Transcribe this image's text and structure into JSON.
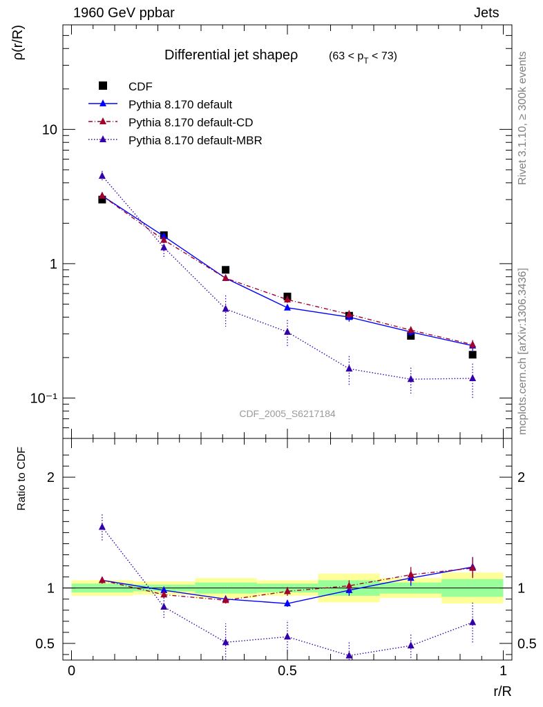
{
  "header": {
    "left": "1960 GeV ppbar",
    "right": "Jets"
  },
  "side_labels": {
    "rivet": "Rivet 3.1.10, ≥ 300k events",
    "mcplots": "mcplots.cern.ch [arXiv:1306.3436]"
  },
  "chart_data": [
    {
      "type": "line",
      "title": "Differential jet shapeρ",
      "subtitle": "(63 < p_T < 73)",
      "ylabel": "ρ(r/R)",
      "xlabel": "",
      "yscale": "log",
      "xlim": [
        -0.02,
        1.02
      ],
      "ylim": [
        0.05,
        60
      ],
      "yticks": [
        {
          "v": 10,
          "label": "10"
        },
        {
          "v": 1,
          "label": "1"
        },
        {
          "v": 0.1,
          "label": "10⁻¹"
        }
      ],
      "annotation": "CDF_2005_S6217184",
      "legend_position": "top-left",
      "x": [
        0.071,
        0.214,
        0.357,
        0.5,
        0.643,
        0.786,
        0.929
      ],
      "series": [
        {
          "name": "CDF",
          "color": "#000000",
          "marker": "square",
          "line": "none",
          "values": [
            3.0,
            1.63,
            0.9,
            0.57,
            0.41,
            0.29,
            0.21
          ],
          "errors": [
            0.1,
            0.05,
            0.03,
            0.02,
            0.02,
            0.01,
            0.01
          ]
        },
        {
          "name": "Pythia 8.170 default",
          "color": "#0000ff",
          "marker": "triangle",
          "line": "solid",
          "values": [
            3.2,
            1.6,
            0.78,
            0.47,
            0.4,
            0.31,
            0.245
          ],
          "errors": [
            0.12,
            0.06,
            0.03,
            0.02,
            0.03,
            0.02,
            0.02
          ]
        },
        {
          "name": "Pythia 8.170 default-CD",
          "color": "#a0002a",
          "marker": "triangle",
          "line": "dashdot",
          "values": [
            3.2,
            1.5,
            0.78,
            0.54,
            0.42,
            0.32,
            0.25
          ],
          "errors": [
            0.12,
            0.06,
            0.03,
            0.03,
            0.03,
            0.02,
            0.02
          ]
        },
        {
          "name": "Pythia 8.170 default-MBR",
          "color": "#3300aa",
          "marker": "triangle",
          "line": "dotted",
          "values": [
            4.5,
            1.32,
            0.46,
            0.31,
            0.165,
            0.138,
            0.14
          ],
          "errors": [
            0.4,
            0.2,
            0.12,
            0.07,
            0.04,
            0.03,
            0.04
          ]
        }
      ]
    },
    {
      "type": "line",
      "xlabel": "r/R",
      "ylabel": "Ratio to CDF",
      "xlim": [
        -0.02,
        1.02
      ],
      "ylim": [
        0.35,
        2.35
      ],
      "xticks": [
        {
          "v": 0,
          "label": "0"
        },
        {
          "v": 0.5,
          "label": "0.5"
        },
        {
          "v": 1,
          "label": "1"
        }
      ],
      "yticks": [
        {
          "v": 0.5,
          "label": "0.5"
        },
        {
          "v": 1,
          "label": "1"
        },
        {
          "v": 2,
          "label": "2"
        }
      ],
      "x": [
        0.071,
        0.214,
        0.357,
        0.5,
        0.643,
        0.786,
        0.929
      ],
      "bands": {
        "edges": [
          0,
          0.143,
          0.286,
          0.429,
          0.571,
          0.714,
          0.857,
          1.0
        ],
        "green": [
          0.04,
          0.03,
          0.05,
          0.04,
          0.07,
          0.05,
          0.08
        ],
        "yellow": [
          0.07,
          0.06,
          0.09,
          0.07,
          0.13,
          0.09,
          0.14
        ],
        "green_color": "#99ff99",
        "yellow_color": "#ffff99"
      },
      "series": [
        {
          "name": "Pythia 8.170 default",
          "color": "#0000ff",
          "line": "solid",
          "values": [
            1.07,
            0.98,
            0.9,
            0.86,
            0.98,
            1.09,
            1.19
          ],
          "errors": [
            0.03,
            0.03,
            0.03,
            0.03,
            0.05,
            0.07,
            0.09
          ]
        },
        {
          "name": "Pythia 8.170 default-CD",
          "color": "#a0002a",
          "line": "dashdot",
          "values": [
            1.07,
            0.94,
            0.89,
            0.97,
            1.02,
            1.12,
            1.18
          ],
          "errors": [
            0.03,
            0.03,
            0.03,
            0.04,
            0.05,
            0.07,
            0.09
          ]
        },
        {
          "name": "Pythia 8.170 default-MBR",
          "color": "#3300aa",
          "line": "dotted",
          "values": [
            1.55,
            0.83,
            0.51,
            0.56,
            0.39,
            0.48,
            0.69
          ],
          "errors": [
            0.12,
            0.1,
            0.17,
            0.15,
            0.12,
            0.11,
            0.18
          ]
        }
      ]
    }
  ]
}
